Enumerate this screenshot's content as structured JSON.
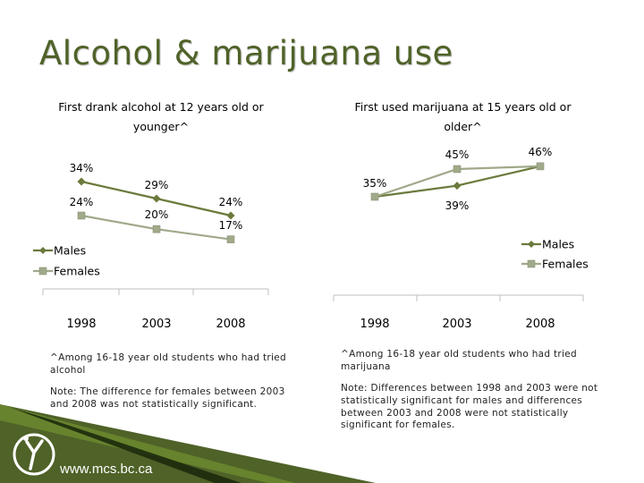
{
  "slide": {
    "title": "Alcohol & marijuana use",
    "footer_url": "www.mcs.bc.ca",
    "colors": {
      "title": "#4f6228",
      "males": "#6b7a3c",
      "females": "#a0a98a",
      "footer_band": "#4f6228"
    }
  },
  "notes": {
    "left": {
      "footnote": "^Among 16-18 year old students who had tried alcohol",
      "note": "Note: The difference for females between 2003 and 2008 was not statistically significant."
    },
    "right": {
      "footnote": "^Among 16-18 year old students who had tried marijuana",
      "note": "Note: Differences between 1998 and 2003 were not statistically significant for males and differences between 2003 and 2008 were not statistically significant for females."
    }
  },
  "chart_data": [
    {
      "type": "line",
      "title": "First drank alcohol at 12 years old or younger^",
      "categories": [
        "1998",
        "2003",
        "2008"
      ],
      "series": [
        {
          "name": "Males",
          "values": [
            34,
            29,
            24
          ],
          "labels": [
            "34%",
            "29%",
            "24%"
          ]
        },
        {
          "name": "Females",
          "values": [
            24,
            20,
            17
          ],
          "labels": [
            "24%",
            "20%",
            "17%"
          ]
        }
      ],
      "legend": "left"
    },
    {
      "type": "line",
      "title": "First used marijuana at 15 years old or older^",
      "categories": [
        "1998",
        "2003",
        "2008"
      ],
      "series": [
        {
          "name": "Males",
          "values": [
            35,
            39,
            46
          ],
          "labels": [
            "35%",
            "39%",
            "46%"
          ]
        },
        {
          "name": "Females",
          "values": [
            35,
            45,
            46
          ],
          "labels": [
            "",
            "45%",
            ""
          ]
        }
      ],
      "legend": "right"
    }
  ]
}
